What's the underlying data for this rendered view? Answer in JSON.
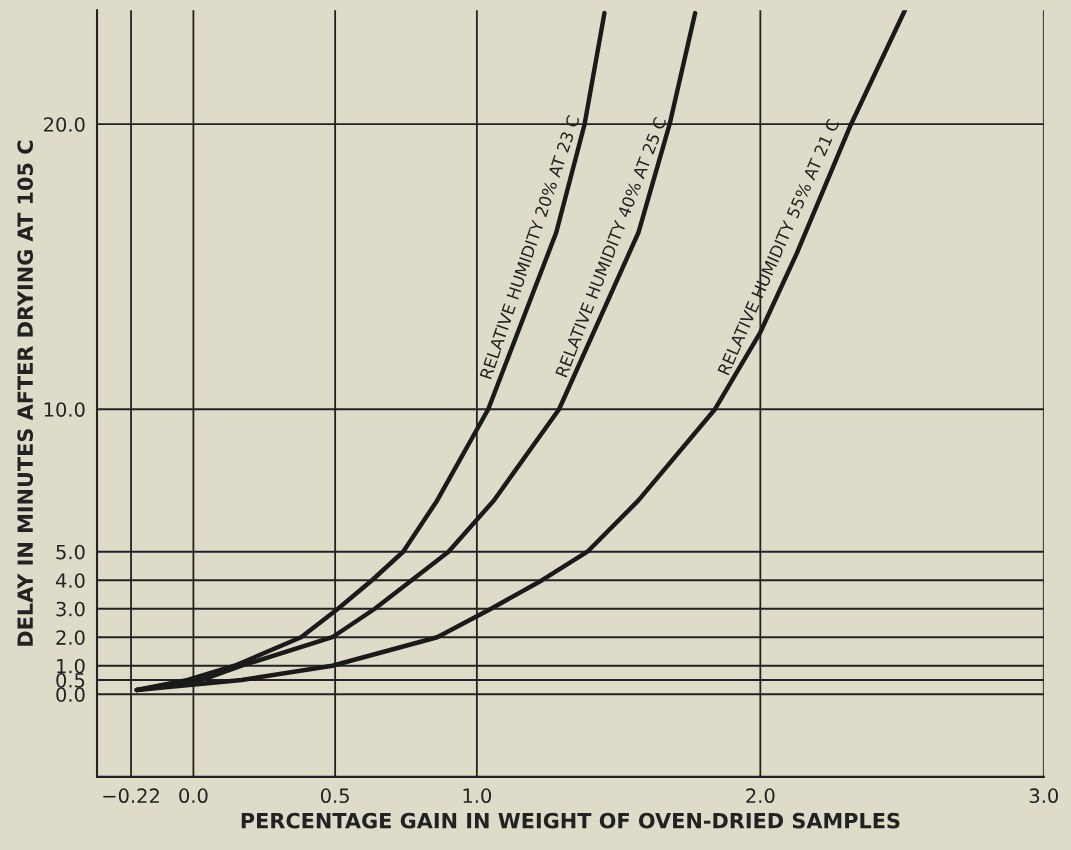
{
  "chart_data": {
    "type": "line",
    "xlabel": "PERCENTAGE GAIN IN WEIGHT OF OVEN-DRIED SAMPLES",
    "ylabel": "DELAY IN MINUTES AFTER DRYING AT 105 C",
    "series": [
      {
        "color": "#1a1a1a",
        "x": [
          -0.2,
          -0.02,
          0.145,
          0.38,
          0.51,
          0.63,
          0.74,
          0.86,
          1.04,
          1.28,
          1.38,
          1.45
        ],
        "values": [
          0.15,
          0.5,
          1.0,
          2.0,
          3.0,
          4.0,
          5.0,
          6.8,
          10.0,
          16.2,
          20.0,
          23.9
        ]
      },
      {
        "color": "#1a1a1a",
        "x": [
          -0.2,
          0.03,
          0.17,
          0.49,
          0.64,
          0.77,
          0.9,
          1.06,
          1.29,
          1.57,
          1.68,
          1.77
        ],
        "values": [
          0.15,
          0.5,
          1.0,
          2.0,
          3.0,
          4.0,
          5.0,
          6.8,
          10.0,
          16.2,
          20.0,
          23.9
        ]
      },
      {
        "color": "#1a1a1a",
        "x": [
          -0.2,
          0.17,
          0.49,
          0.86,
          1.05,
          1.23,
          1.39,
          1.57,
          1.84,
          2.0,
          2.13,
          2.32,
          2.51
        ],
        "values": [
          0.15,
          0.5,
          1.0,
          2.0,
          3.0,
          4.0,
          5.0,
          6.8,
          10.0,
          12.7,
          15.5,
          20.0,
          24.0
        ]
      }
    ],
    "annotations": [
      "RELATIVE HUMIDITY 20% AT 23 C",
      "RELATIVE HUMIDITY 40% AT 25 C",
      "RELATIVE HUMIDITY 55% AT 21 C"
    ],
    "xlim": [
      -0.34,
      3.0
    ],
    "xticks": [
      {
        "value": -0.22,
        "label": "−0.22"
      },
      {
        "value": 0,
        "label": "0.0"
      },
      {
        "value": 0.5,
        "label": "0.5"
      },
      {
        "value": 1,
        "label": "1.0"
      },
      {
        "value": 2,
        "label": "2.0"
      },
      {
        "value": 3,
        "label": "3.0"
      }
    ],
    "ylim": [
      -2.9,
      24.0
    ],
    "yticks": [
      {
        "value": 0,
        "label": "0.0"
      },
      {
        "value": 0.5,
        "label": "0.5"
      },
      {
        "value": 1,
        "label": "1.0"
      },
      {
        "value": 2,
        "label": "2.0"
      },
      {
        "value": 3,
        "label": "3.0"
      },
      {
        "value": 4,
        "label": "4.0"
      },
      {
        "value": 5,
        "label": "5.0"
      },
      {
        "value": 10,
        "label": "10.0"
      },
      {
        "value": 20,
        "label": "20.0"
      }
    ],
    "grid": true,
    "legend": false
  }
}
